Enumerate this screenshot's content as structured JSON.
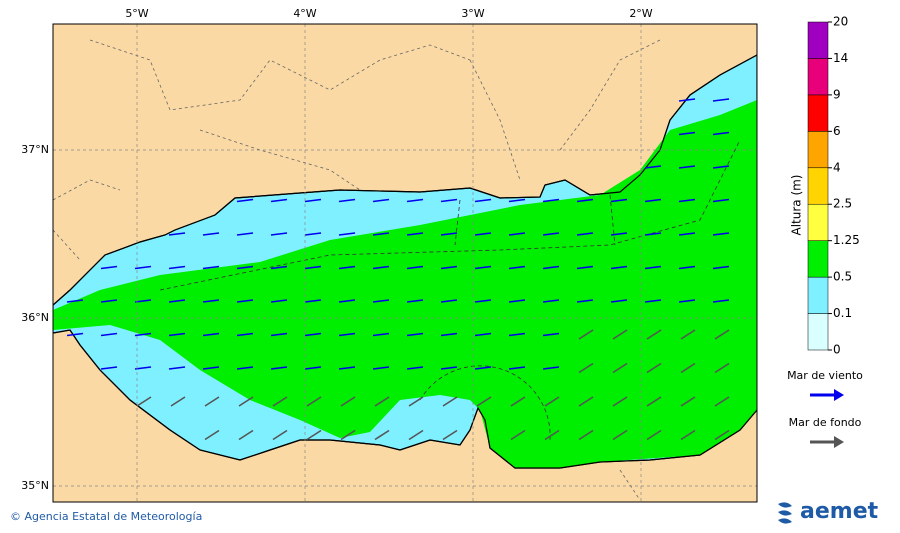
{
  "map": {
    "lon_labels": [
      "5°W",
      "4°W",
      "3°W",
      "2°W"
    ],
    "lat_labels": [
      "37°N",
      "36°N",
      "35°N"
    ],
    "colorbar": {
      "label": "Altura (m)",
      "levels": [
        0,
        0.1,
        0.5,
        1.25,
        2.5,
        4,
        6,
        9,
        14,
        20
      ],
      "colors": [
        "#d9ffff",
        "#7ff0ff",
        "#00ee00",
        "#ffff40",
        "#ffd400",
        "#ffa500",
        "#ff0000",
        "#e8007a",
        "#a000c0"
      ]
    },
    "legend": [
      {
        "name": "Mar de viento",
        "color": "#0000ee"
      },
      {
        "name": "Mar de fondo",
        "color": "#555555"
      }
    ],
    "footer": "© Agencia Estatal de Meteorología",
    "logo": "aemet"
  }
}
